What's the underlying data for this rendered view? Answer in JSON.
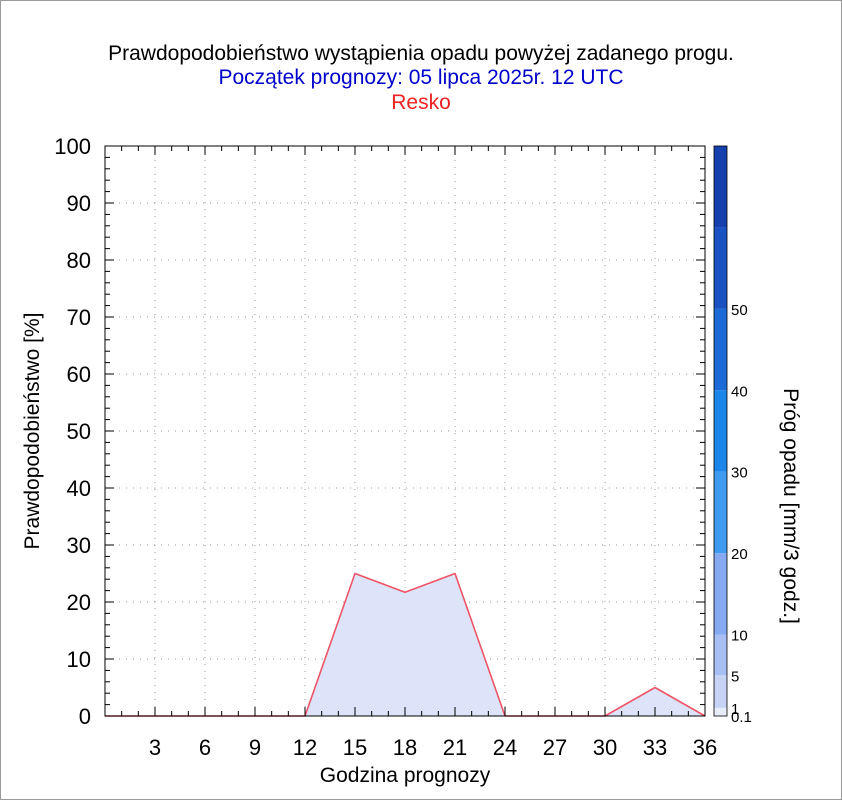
{
  "chart_data": {
    "type": "area",
    "title": "Prawdopodobieństwo wystąpienia opadu powyżej zadanego progu.",
    "subtitle": "Początek prognozy: 05 lipca 2025r. 12 UTC",
    "station": "Resko",
    "xlabel": "Godzina prognozy",
    "ylabel": "Prawdopodobieństwo [%]",
    "colorbar_label": "Próg opadu [mm/3 godz.]",
    "xlim": [
      0,
      36
    ],
    "ylim": [
      0,
      100
    ],
    "x_ticks": [
      3,
      6,
      9,
      12,
      15,
      18,
      21,
      24,
      27,
      30,
      33,
      36
    ],
    "y_ticks": [
      0,
      10,
      20,
      30,
      40,
      50,
      60,
      70,
      80,
      90,
      100
    ],
    "grid": true,
    "series": [
      {
        "name": "0.1",
        "color": "#ee5566",
        "fill": "#dde3f9",
        "x": [
          0,
          3,
          6,
          9,
          12,
          15,
          18,
          21,
          24,
          27,
          30,
          33,
          36
        ],
        "values": [
          0,
          0,
          0,
          0,
          0,
          25,
          21.7,
          25,
          0,
          0,
          0,
          5,
          0
        ]
      }
    ],
    "colorbar": [
      {
        "label": "0.1",
        "from": 0,
        "to": 1,
        "color": "#e8edfb"
      },
      {
        "label": "1",
        "from": 1,
        "to": 5,
        "color": "#c6d3f5"
      },
      {
        "label": "5",
        "from": 5,
        "to": 10,
        "color": "#a8bff3"
      },
      {
        "label": "10",
        "from": 10,
        "to": 20,
        "color": "#86aaf2"
      },
      {
        "label": "20",
        "from": 20,
        "to": 30,
        "color": "#3f9bf0"
      },
      {
        "label": "30",
        "from": 30,
        "to": 40,
        "color": "#1a86ea"
      },
      {
        "label": "40",
        "from": 40,
        "to": 50,
        "color": "#1b6ad8"
      },
      {
        "label": "50",
        "from": 50,
        "to": 60,
        "color": "#1a52c4"
      },
      {
        "label": "",
        "from": 60,
        "to": 70,
        "color": "#1640ae"
      }
    ]
  }
}
